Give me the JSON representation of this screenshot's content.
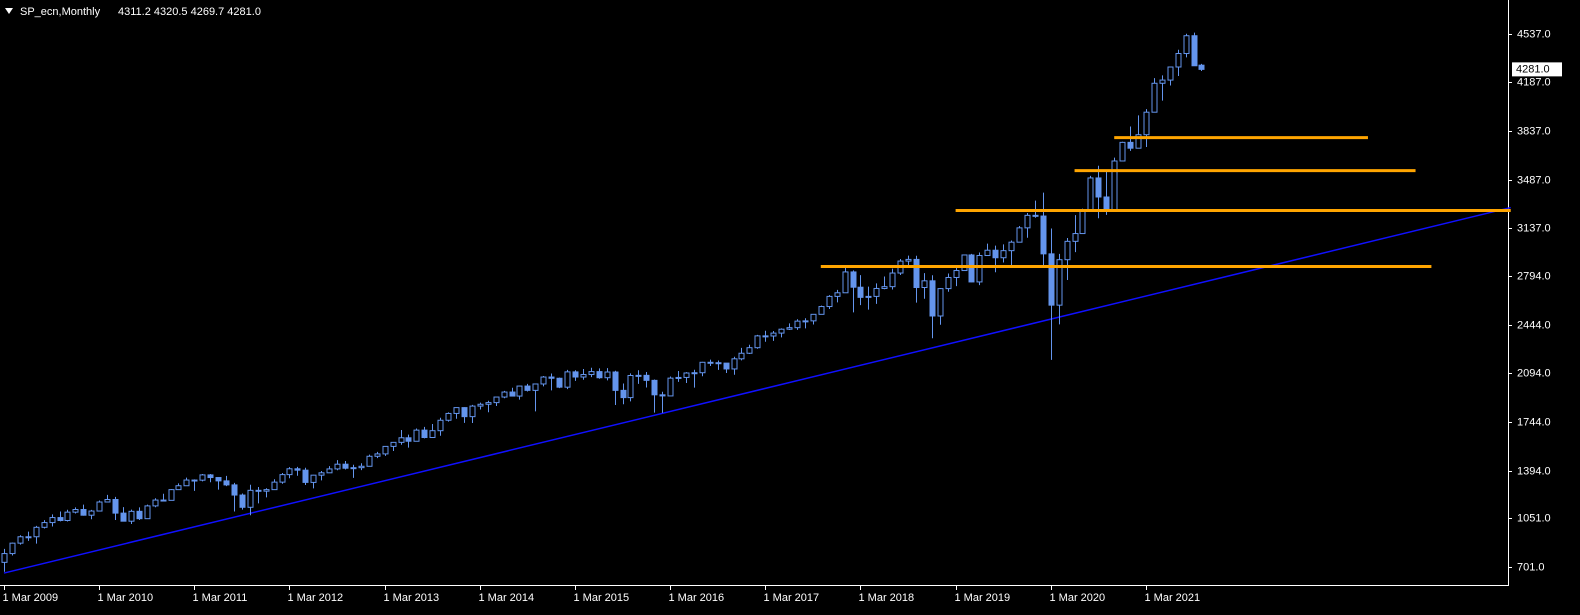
{
  "chart_data": {
    "type": "candlestick",
    "title": "SP_ecn,Monthly",
    "subtitle": "4311.2 4320.5 4269.7 4281.0",
    "categories": [
      "1 Mar 2009",
      null,
      null,
      null,
      null,
      null,
      null,
      null,
      null,
      null,
      null,
      null,
      "1 Mar 2010",
      null,
      null,
      null,
      null,
      null,
      null,
      null,
      null,
      null,
      null,
      null,
      "1 Mar 2011",
      null,
      null,
      null,
      null,
      null,
      null,
      null,
      null,
      null,
      null,
      null,
      "1 Mar 2012",
      null,
      null,
      null,
      null,
      null,
      null,
      null,
      null,
      null,
      null,
      null,
      "1 Mar 2013",
      null,
      null,
      null,
      null,
      null,
      null,
      null,
      null,
      null,
      null,
      null,
      "1 Mar 2014",
      null,
      null,
      null,
      null,
      null,
      null,
      null,
      null,
      null,
      null,
      null,
      "1 Mar 2015",
      null,
      null,
      null,
      null,
      null,
      null,
      null,
      null,
      null,
      null,
      null,
      "1 Mar 2016",
      null,
      null,
      null,
      null,
      null,
      null,
      null,
      null,
      null,
      null,
      null,
      "1 Mar 2017",
      null,
      null,
      null,
      null,
      null,
      null,
      null,
      null,
      null,
      null,
      null,
      "1 Mar 2018",
      null,
      null,
      null,
      null,
      null,
      null,
      null,
      null,
      null,
      null,
      null,
      "1 Mar 2019",
      null,
      null,
      null,
      null,
      null,
      null,
      null,
      null,
      null,
      null,
      null,
      "1 Mar 2020",
      null,
      null,
      null,
      null,
      null,
      null,
      null,
      null,
      null,
      null,
      null,
      "1 Mar 2021",
      null,
      null,
      null,
      null,
      null,
      null,
      null
    ],
    "open": [
      735,
      798,
      873,
      919,
      919,
      987,
      1021,
      1057,
      1036,
      1096,
      1115,
      1074,
      1104,
      1169,
      1187,
      1089,
      1031,
      1102,
      1049,
      1141,
      1183,
      1181,
      1258,
      1286,
      1327,
      1326,
      1364,
      1345,
      1321,
      1292,
      1219,
      1131,
      1253,
      1247,
      1258,
      1312,
      1366,
      1408,
      1398,
      1310,
      1362,
      1379,
      1407,
      1441,
      1412,
      1416,
      1426,
      1498,
      1515,
      1569,
      1598,
      1631,
      1606,
      1686,
      1633,
      1682,
      1757,
      1806,
      1848,
      1783,
      1859,
      1872,
      1884,
      1924,
      1960,
      1931,
      2003,
      1972,
      2018,
      2068,
      2059,
      1995,
      2105,
      2068,
      2086,
      2107,
      2063,
      2104,
      1972,
      1920,
      2079,
      2080,
      2044,
      1940,
      1932,
      2060,
      2065,
      2097,
      2099,
      2174,
      2171,
      2168,
      2126,
      2199,
      2239,
      2279,
      2364,
      2363,
      2384,
      2412,
      2423,
      2470,
      2472,
      2519,
      2575,
      2648,
      2674,
      2824,
      2714,
      2641,
      2648,
      2705,
      2718,
      2816,
      2902,
      2914,
      2712,
      2760,
      2507,
      2704,
      2784,
      2834,
      2946,
      2752,
      2942,
      2980,
      2926,
      2977,
      3038,
      3141,
      3231,
      3226,
      2954,
      2585,
      2912,
      3044,
      3100,
      3271,
      3500,
      3363,
      3270,
      3622,
      3756,
      3714,
      3811,
      3973,
      4181,
      4204,
      4298,
      4395,
      4523,
      4311.2
    ],
    "high": [
      832,
      877,
      930,
      956,
      997,
      1039,
      1080,
      1101,
      1113,
      1130,
      1150,
      1112,
      1180,
      1220,
      1206,
      1132,
      1114,
      1130,
      1150,
      1196,
      1228,
      1262,
      1303,
      1344,
      1332,
      1370,
      1370,
      1346,
      1357,
      1307,
      1230,
      1293,
      1277,
      1268,
      1333,
      1378,
      1420,
      1422,
      1415,
      1364,
      1392,
      1427,
      1470,
      1464,
      1437,
      1448,
      1510,
      1530,
      1570,
      1598,
      1687,
      1654,
      1698,
      1709,
      1730,
      1775,
      1814,
      1850,
      1851,
      1868,
      1884,
      1897,
      1924,
      1968,
      1991,
      2005,
      2019,
      2018,
      2075,
      2093,
      2064,
      2119,
      2117,
      2126,
      2135,
      2130,
      2132,
      2113,
      2021,
      2094,
      2117,
      2104,
      2050,
      1962,
      2072,
      2111,
      2103,
      2120,
      2177,
      2193,
      2187,
      2169,
      2214,
      2278,
      2300,
      2371,
      2401,
      2399,
      2418,
      2454,
      2484,
      2491,
      2520,
      2582,
      2657,
      2695,
      2873,
      2835,
      2801,
      2718,
      2742,
      2791,
      2848,
      2917,
      2941,
      2940,
      2815,
      2800,
      2708,
      2813,
      2860,
      2949,
      2954,
      2964,
      3028,
      3013,
      3022,
      3050,
      3154,
      3248,
      3337,
      3394,
      3136,
      2954,
      3068,
      3233,
      3279,
      3515,
      3588,
      3550,
      3646,
      3760,
      3870,
      3950,
      3995,
      4218,
      4238,
      4302,
      4422,
      4537,
      4545,
      4320.5
    ],
    "low": [
      667,
      784,
      862,
      889,
      870,
      978,
      993,
      1030,
      1029,
      1086,
      1071,
      1045,
      1101,
      1169,
      1040,
      1029,
      1011,
      1040,
      1047,
      1131,
      1174,
      1181,
      1257,
      1285,
      1249,
      1317,
      1311,
      1258,
      1283,
      1101,
      1114,
      1074,
      1159,
      1202,
      1258,
      1300,
      1340,
      1358,
      1291,
      1267,
      1325,
      1378,
      1397,
      1403,
      1343,
      1398,
      1426,
      1485,
      1501,
      1536,
      1581,
      1560,
      1605,
      1627,
      1633,
      1646,
      1747,
      1768,
      1738,
      1737,
      1834,
      1815,
      1860,
      1915,
      1930,
      1905,
      1964,
      1821,
      2001,
      1972,
      1988,
      1981,
      2040,
      2048,
      2067,
      2056,
      2044,
      1867,
      1872,
      1893,
      2019,
      1993,
      1812,
      1810,
      1931,
      2033,
      2025,
      1992,
      2074,
      2147,
      2119,
      2097,
      2084,
      2188,
      2234,
      2271,
      2322,
      2328,
      2353,
      2406,
      2407,
      2418,
      2446,
      2520,
      2557,
      2605,
      2683,
      2533,
      2585,
      2553,
      2594,
      2699,
      2698,
      2802,
      2864,
      2603,
      2631,
      2347,
      2444,
      2681,
      2722,
      2848,
      2750,
      2729,
      2952,
      2822,
      2892,
      2855,
      3050,
      3070,
      3214,
      2855,
      2191,
      2447,
      2766,
      2966,
      3115,
      3284,
      3210,
      3234,
      3280,
      3634,
      3695,
      3726,
      3723,
      3978,
      4056,
      4165,
      4233,
      4367,
      4305,
      4269.7
    ],
    "close": [
      798,
      873,
      919,
      919,
      987,
      1021,
      1057,
      1036,
      1096,
      1115,
      1074,
      1104,
      1169,
      1187,
      1089,
      1031,
      1102,
      1049,
      1141,
      1183,
      1181,
      1258,
      1286,
      1327,
      1326,
      1364,
      1345,
      1321,
      1292,
      1219,
      1131,
      1253,
      1247,
      1258,
      1312,
      1366,
      1408,
      1398,
      1310,
      1362,
      1379,
      1407,
      1441,
      1412,
      1416,
      1426,
      1498,
      1515,
      1569,
      1598,
      1631,
      1606,
      1686,
      1633,
      1682,
      1757,
      1806,
      1848,
      1783,
      1859,
      1872,
      1884,
      1924,
      1960,
      1931,
      2003,
      1972,
      2018,
      2068,
      2059,
      1995,
      2105,
      2068,
      2086,
      2107,
      2063,
      2104,
      1972,
      1920,
      2079,
      2080,
      2044,
      1940,
      1932,
      2060,
      2065,
      2097,
      2099,
      2174,
      2171,
      2168,
      2126,
      2199,
      2239,
      2279,
      2364,
      2363,
      2384,
      2412,
      2423,
      2470,
      2472,
      2519,
      2575,
      2648,
      2674,
      2824,
      2714,
      2641,
      2648,
      2705,
      2718,
      2816,
      2902,
      2914,
      2712,
      2760,
      2507,
      2704,
      2784,
      2834,
      2946,
      2752,
      2942,
      2980,
      2926,
      2977,
      3038,
      3141,
      3231,
      3226,
      2954,
      2585,
      2912,
      3044,
      3100,
      3271,
      3500,
      3363,
      3270,
      3622,
      3756,
      3714,
      3811,
      3973,
      4181,
      4204,
      4298,
      4395,
      4523,
      4307,
      4281
    ],
    "up_color": "#6495ed",
    "down_color": "#6495ed",
    "ylim": [
      572,
      4780
    ],
    "yticks": [
      {
        "value": 701,
        "label": "701.0"
      },
      {
        "value": 1051,
        "label": "1051.0"
      },
      {
        "value": 1394,
        "label": "1394.0"
      },
      {
        "value": 1744,
        "label": "1744.0"
      },
      {
        "value": 2094,
        "label": "2094.0"
      },
      {
        "value": 2444,
        "label": "2444.0"
      },
      {
        "value": 2794,
        "label": "2794.0"
      },
      {
        "value": 3137,
        "label": "3137.0"
      },
      {
        "value": 3487,
        "label": "3487.0"
      },
      {
        "value": 3837,
        "label": "3837.0"
      },
      {
        "value": 4187,
        "label": "4187.0"
      },
      {
        "value": 4537,
        "label": "4537.0"
      }
    ],
    "current_price": {
      "value": 4281,
      "label": "4281.0"
    },
    "levels": [
      {
        "value": 2863,
        "from": 103,
        "to": 180
      },
      {
        "value": 3266,
        "from": 120,
        "to": 190
      },
      {
        "value": 3553,
        "from": 135,
        "to": 178
      },
      {
        "value": 3790,
        "from": 140,
        "to": 172
      }
    ],
    "level_color": "#ffa500",
    "trendline": {
      "x": [
        0,
        190
      ],
      "y": [
        658,
        3287
      ]
    },
    "trend_color": "#1010ff"
  }
}
